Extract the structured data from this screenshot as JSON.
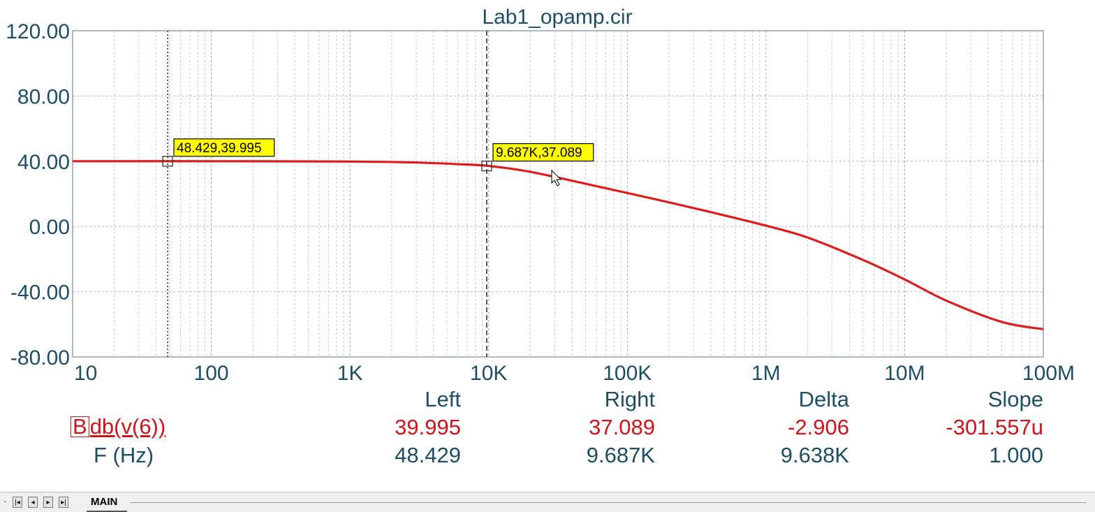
{
  "chart_data": {
    "type": "line",
    "title": "Lab1_opamp.cir",
    "x_scale": "log",
    "xlim": [
      10,
      100000000
    ],
    "ylim": [
      -80,
      120
    ],
    "x_ticks": [
      {
        "value": 10,
        "label": "10"
      },
      {
        "value": 100,
        "label": "100"
      },
      {
        "value": 1000,
        "label": "1K"
      },
      {
        "value": 10000,
        "label": "10K"
      },
      {
        "value": 100000,
        "label": "100K"
      },
      {
        "value": 1000000,
        "label": "1M"
      },
      {
        "value": 10000000,
        "label": "10M"
      },
      {
        "value": 100000000,
        "label": "100M"
      }
    ],
    "y_ticks": [
      {
        "value": 120,
        "label": "120.00"
      },
      {
        "value": 80,
        "label": "80.00"
      },
      {
        "value": 40,
        "label": "40.00"
      },
      {
        "value": 0,
        "label": "0.00"
      },
      {
        "value": -40,
        "label": "-40.00"
      },
      {
        "value": -80,
        "label": "-80.00"
      }
    ],
    "grid": true,
    "series": [
      {
        "name": "db(v(6))",
        "color": "#e01b1b",
        "x": [
          10,
          100,
          1000,
          3000,
          6000,
          10000,
          20000,
          50000,
          100000,
          200000,
          500000,
          1000000,
          2000000,
          5000000,
          10000000,
          20000000,
          50000000,
          100000000
        ],
        "y": [
          40,
          40,
          39.8,
          39.2,
          38.2,
          37.1,
          33.5,
          26.2,
          20.5,
          14.8,
          6.8,
          0.5,
          -6.8,
          -20.5,
          -32.5,
          -45.5,
          -58.5,
          -63
        ]
      }
    ],
    "cursors": [
      {
        "x": 48.429,
        "y": 39.995,
        "label": "48.429,39.995",
        "style": "dotted"
      },
      {
        "x": 9687,
        "y": 37.089,
        "label": "9.687K,37.089",
        "style": "dashed"
      }
    ]
  },
  "readout": {
    "headers": {
      "left": "Left",
      "right": "Right",
      "delta": "Delta",
      "slope": "Slope"
    },
    "rows": [
      {
        "marker": "B",
        "name": "db(v(6))",
        "left": "39.995",
        "right": "37.089",
        "delta": "-2.906",
        "slope": "-301.557u"
      },
      {
        "name": "F (Hz)",
        "left": "48.429",
        "right": "9.687K",
        "delta": "9.638K",
        "slope": "1.000"
      }
    ]
  },
  "tabs": {
    "active": "MAIN"
  },
  "colors": {
    "axis_text": "#1d4e63",
    "trace": "#e01b1b",
    "cursor_label_bg": "#ffff00"
  }
}
